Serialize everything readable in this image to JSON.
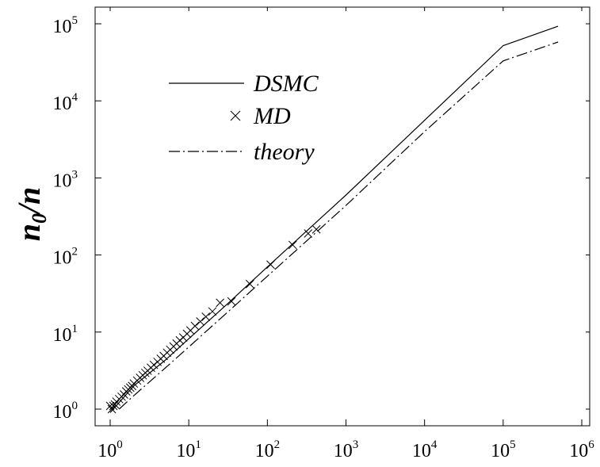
{
  "chart_data": {
    "type": "line",
    "xscale": "log",
    "yscale": "log",
    "xlim": [
      1,
      1000000
    ],
    "ylim": [
      1,
      100000
    ],
    "xlabel": "",
    "ylabel": {
      "base": "n",
      "subscript": "0",
      "suffix": "/n"
    },
    "x_ticks": [
      {
        "base": "10",
        "exp": "0"
      },
      {
        "base": "10",
        "exp": "1"
      },
      {
        "base": "10",
        "exp": "2"
      },
      {
        "base": "10",
        "exp": "3"
      },
      {
        "base": "10",
        "exp": "4"
      },
      {
        "base": "10",
        "exp": "5"
      },
      {
        "base": "10",
        "exp": "6"
      }
    ],
    "y_ticks": [
      {
        "base": "10",
        "exp": "0"
      },
      {
        "base": "10",
        "exp": "1"
      },
      {
        "base": "10",
        "exp": "2"
      },
      {
        "base": "10",
        "exp": "3"
      },
      {
        "base": "10",
        "exp": "4"
      },
      {
        "base": "10",
        "exp": "5"
      }
    ],
    "legend_position": "top-left",
    "grid": false,
    "series": [
      {
        "name": "DSMC",
        "style": "solid",
        "color": "#000000",
        "x": [
          1,
          2,
          5,
          10,
          30,
          100,
          300,
          1000,
          10000,
          100000,
          500000
        ],
        "y": [
          0.9,
          2.0,
          4.3,
          8.2,
          22.5,
          70,
          195,
          600,
          5600,
          52000,
          93000
        ]
      },
      {
        "name": "MD",
        "style": "marker-x",
        "color": "#000000",
        "x": [
          1.0,
          1.05,
          1.1,
          1.15,
          1.2,
          1.3,
          1.4,
          1.5,
          1.6,
          1.7,
          1.8,
          1.9,
          2.0,
          2.2,
          2.4,
          2.6,
          2.8,
          3.0,
          3.3,
          3.6,
          4.0,
          4.4,
          4.8,
          5.3,
          5.8,
          6.4,
          7.0,
          7.7,
          8.5,
          9.5,
          10.5,
          12,
          14,
          16.5,
          20,
          25,
          35,
          60,
          110,
          210,
          330,
          420
        ],
        "y": [
          1.1,
          1.0,
          1.1,
          1.15,
          1.25,
          1.35,
          1.45,
          1.55,
          1.7,
          1.8,
          1.9,
          2.0,
          2.15,
          2.35,
          2.55,
          2.75,
          2.95,
          3.15,
          3.45,
          3.75,
          4.1,
          4.5,
          4.9,
          5.4,
          5.9,
          6.5,
          7.1,
          7.8,
          8.5,
          9.5,
          10.5,
          12,
          13.7,
          15.8,
          18.5,
          24,
          25,
          42,
          75,
          135,
          190,
          215
        ]
      },
      {
        "name": "theory",
        "style": "dash-dot",
        "color": "#000000",
        "x": [
          1.3,
          2,
          5,
          10,
          30,
          100,
          300,
          1000,
          10000,
          100000,
          500000
        ],
        "y": [
          1.0,
          1.5,
          3.4,
          6.4,
          17.5,
          53,
          145,
          440,
          4000,
          33000,
          58000
        ]
      }
    ]
  }
}
